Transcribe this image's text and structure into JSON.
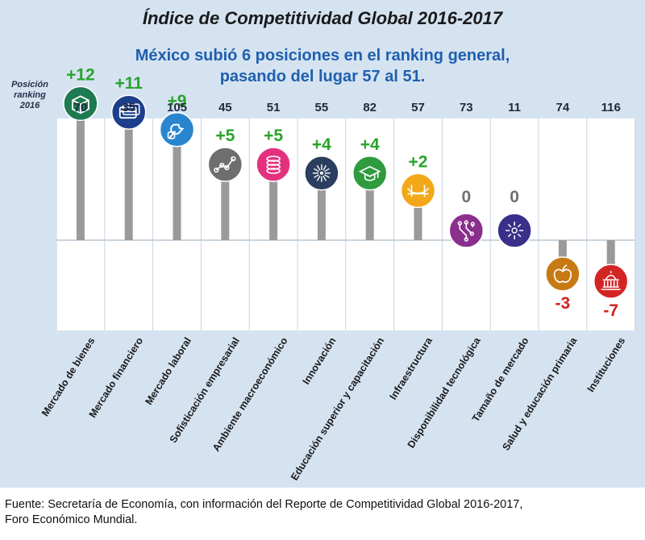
{
  "title": "Índice de Competitividad Global 2016-2017",
  "subtitle": {
    "line1": "México subió 6 posiciones en el ranking general,",
    "line2": "pasando del lugar 57 al 51."
  },
  "rank_header": {
    "line1": "Posición",
    "line2": "ranking",
    "line3": "2016"
  },
  "footer": {
    "line1": "Fuente: Secretaría de Economía, con información del Reporte de Competitividad Global 2016-2017,",
    "line2": "Foro Económico Mundial."
  },
  "colors": {
    "positive_label": "#2aa32a",
    "zero_label": "#707070",
    "negative_label": "#d01f1f",
    "panel_background": "#d5e3f1",
    "title_blue": "#1f5fae"
  },
  "chart_data": {
    "type": "bar",
    "title": "Índice de Competitividad Global 2016-2017",
    "categories": [
      "Mercado de bienes",
      "Mercado financiero",
      "Mercado laboral",
      "Sofisticación empresarial",
      "Ambiente macroeconómico",
      "Innovación",
      "Educación superior y capacitación",
      "Infraestructura",
      "Disponibilidad tecnológica",
      "Tamaño de mercado",
      "Salud y educación primaria",
      "Instituciones"
    ],
    "rank_2016": [
      70,
      35,
      105,
      45,
      51,
      55,
      82,
      57,
      73,
      11,
      74,
      116
    ],
    "series": [
      {
        "values": [
          12,
          11,
          9,
          5,
          5,
          4,
          4,
          2,
          0,
          0,
          -3,
          -7
        ],
        "labels": [
          "+12",
          "+11",
          "+9",
          "+5",
          "+5",
          "+4",
          "+4",
          "+2",
          "0",
          "0",
          "-3",
          "-7"
        ]
      }
    ],
    "icons": [
      "box-icon",
      "cards-icon",
      "wrench-hand-icon",
      "network-line-icon",
      "coin-stack-icon",
      "burst-icon",
      "graduation-cap-icon",
      "bridge-icon",
      "circuit-icon",
      "expand-arrows-icon",
      "apple-icon",
      "capitol-icon"
    ],
    "marker_colors": [
      "#1e7a50",
      "#1c3f8c",
      "#2a85cf",
      "#6e6e6e",
      "#e3317e",
      "#2c3e5f",
      "#2f9b3e",
      "#f2a818",
      "#8a2f8e",
      "#3a2f8a",
      "#c77a14",
      "#d42525"
    ],
    "ylim": [
      -10,
      13
    ],
    "grid": true
  }
}
